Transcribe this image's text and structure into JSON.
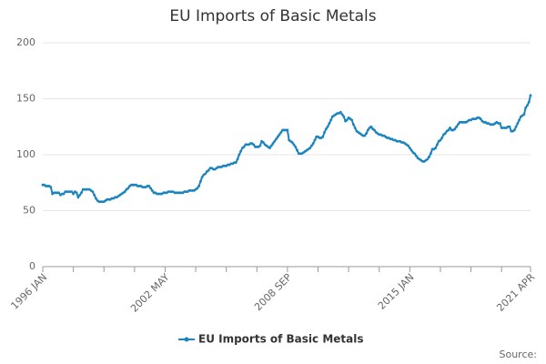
{
  "chart_data": {
    "type": "line",
    "title": "EU Imports of Basic Metals",
    "source": "Source:",
    "categories": [
      "1996 JAN",
      null,
      null,
      null,
      null,
      null,
      null,
      null,
      null,
      null,
      null,
      null,
      null,
      null,
      null,
      null,
      null,
      null,
      null,
      null,
      null,
      null,
      null,
      null,
      null,
      null,
      null,
      null,
      null,
      null,
      null,
      null,
      null,
      null,
      null,
      null,
      null,
      null,
      null,
      null,
      null,
      null,
      null,
      null,
      null,
      null,
      null,
      null,
      null,
      null,
      null,
      null,
      null,
      null,
      null,
      null,
      null,
      null,
      null,
      null,
      null,
      null,
      null,
      null,
      null,
      null,
      null,
      null,
      null,
      null,
      null,
      null,
      null,
      null,
      null,
      null,
      "2002 MAY",
      null,
      null,
      null,
      null,
      null,
      null,
      null,
      null,
      null,
      null,
      null,
      null,
      null,
      null,
      null,
      null,
      null,
      null,
      null,
      null,
      null,
      null,
      null,
      null,
      null,
      null,
      null,
      null,
      null,
      null,
      null,
      null,
      null,
      null,
      null,
      null,
      null,
      null,
      null,
      null,
      null,
      null,
      null,
      null,
      null,
      null,
      null,
      null,
      null,
      null,
      null,
      null,
      null,
      null,
      null,
      null,
      null,
      null,
      null,
      null,
      null,
      null,
      null,
      null,
      null,
      null,
      null,
      null,
      null,
      null,
      null,
      null,
      null,
      null,
      null,
      "2008 SEP",
      null,
      null,
      null,
      null,
      null,
      null,
      null,
      null,
      null,
      null,
      null,
      null,
      null,
      null,
      null,
      null,
      null,
      null,
      null,
      null,
      null,
      null,
      null,
      null,
      null,
      null,
      null,
      null,
      null,
      null,
      null,
      null,
      null,
      null,
      null,
      null,
      null,
      null,
      null,
      null,
      null,
      null,
      null,
      null,
      null,
      null,
      null,
      null,
      null,
      null,
      null,
      null,
      null,
      null,
      null,
      null,
      null,
      null,
      null,
      null,
      null,
      null,
      null,
      null,
      null,
      null,
      null,
      null,
      null,
      null,
      null,
      null,
      null,
      null,
      null,
      "2015 JAN",
      null,
      null,
      null,
      null,
      null,
      null,
      null,
      null,
      null,
      null,
      null,
      null,
      null,
      null,
      null,
      null,
      null,
      null,
      null,
      null,
      null,
      null,
      null,
      null,
      null,
      null,
      null,
      null,
      null,
      null,
      null,
      null,
      null,
      null,
      null,
      null,
      null,
      null,
      null,
      null,
      null,
      null,
      null,
      null,
      null,
      null,
      null,
      null,
      null,
      null,
      null,
      null,
      null,
      null,
      null,
      null,
      null,
      null,
      null,
      null,
      null,
      null,
      null,
      null,
      null,
      null,
      null,
      null,
      null,
      null,
      null,
      null,
      null,
      null,
      "2021 APR"
    ],
    "series": [
      {
        "name": "EU Imports of Basic Metals",
        "color": "#1a84c0",
        "values": [
          73,
          73,
          72,
          72,
          72,
          71,
          65,
          66,
          66,
          66,
          66,
          64,
          65,
          65,
          67,
          67,
          67,
          67,
          67,
          65,
          67,
          66,
          62,
          64,
          66,
          69,
          69,
          69,
          69,
          69,
          68,
          67,
          64,
          61,
          59,
          58,
          58,
          58,
          58,
          59,
          60,
          60,
          60,
          61,
          61,
          62,
          62,
          63,
          64,
          65,
          66,
          67,
          69,
          70,
          72,
          73,
          73,
          73,
          73,
          72,
          72,
          72,
          71,
          71,
          71,
          72,
          72,
          70,
          68,
          66,
          66,
          65,
          65,
          65,
          65,
          66,
          66,
          66,
          67,
          67,
          67,
          67,
          66,
          66,
          66,
          66,
          66,
          66,
          67,
          67,
          67,
          68,
          68,
          68,
          68,
          69,
          70,
          72,
          76,
          80,
          82,
          83,
          85,
          86,
          88,
          88,
          87,
          87,
          88,
          89,
          89,
          89,
          90,
          90,
          90,
          91,
          91,
          92,
          92,
          93,
          93,
          96,
          100,
          103,
          106,
          107,
          109,
          109,
          109,
          110,
          110,
          109,
          107,
          107,
          107,
          108,
          112,
          111,
          109,
          108,
          107,
          106,
          108,
          110,
          112,
          114,
          116,
          118,
          120,
          122,
          122,
          122,
          122,
          113,
          112,
          111,
          109,
          107,
          104,
          101,
          101,
          101,
          102,
          103,
          104,
          105,
          106,
          108,
          110,
          113,
          116,
          116,
          115,
          115,
          116,
          120,
          123,
          125,
          128,
          131,
          134,
          135,
          136,
          137,
          137,
          138,
          136,
          134,
          130,
          131,
          133,
          132,
          131,
          127,
          124,
          121,
          120,
          119,
          118,
          117,
          117,
          119,
          122,
          124,
          125,
          123,
          122,
          120,
          119,
          118,
          118,
          117,
          117,
          116,
          115,
          115,
          114,
          114,
          113,
          113,
          112,
          112,
          112,
          111,
          111,
          110,
          109,
          108,
          106,
          104,
          102,
          101,
          99,
          97,
          96,
          95,
          94,
          94,
          95,
          96,
          98,
          101,
          105,
          105,
          106,
          109,
          112,
          113,
          115,
          118,
          119,
          121,
          122,
          124,
          122,
          122,
          123,
          125,
          127,
          129,
          129,
          129,
          129,
          129,
          130,
          131,
          131,
          132,
          132,
          132,
          133,
          133,
          132,
          130,
          129,
          129,
          128,
          128,
          127,
          127,
          127,
          128,
          129,
          128,
          128,
          124,
          124,
          124,
          124,
          125,
          125,
          121,
          121,
          122,
          125,
          128,
          131,
          134,
          135,
          136,
          142,
          144,
          147,
          153
        ]
      }
    ],
    "ylim": [
      0,
      200
    ],
    "yticks": [
      0,
      50,
      100,
      150,
      200
    ],
    "grid": true
  }
}
